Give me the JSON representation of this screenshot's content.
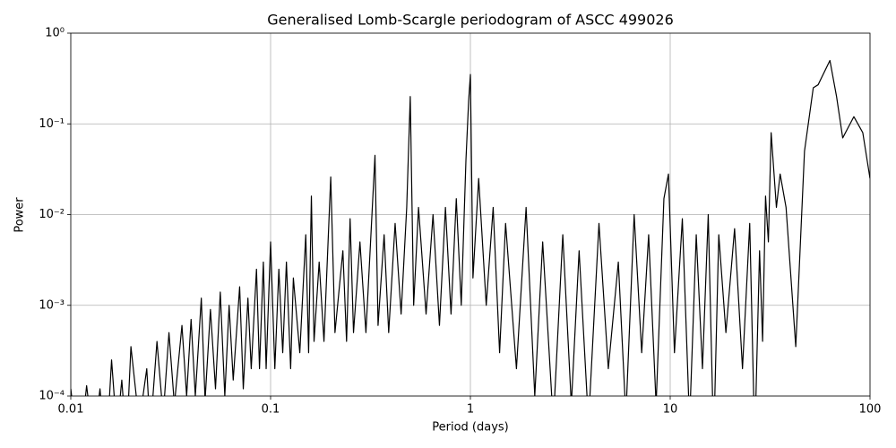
{
  "chart_data": {
    "type": "line",
    "title": "Generalised Lomb-Scargle periodogram of ASCC 499026",
    "x_label": "Period (days)",
    "y_label": "Power",
    "xscale": "log",
    "yscale": "log",
    "grid": true,
    "xlim": [
      0.01,
      100
    ],
    "ylim": [
      0.0001,
      1
    ],
    "xticks": [
      0.01,
      0.1,
      1,
      10,
      100
    ],
    "yticks": [
      {
        "value": 0.0001,
        "label": "10⁻⁴"
      },
      {
        "value": 0.001,
        "label": "10⁻³"
      },
      {
        "value": 0.01,
        "label": "10⁻²"
      },
      {
        "value": 0.1,
        "label": "10⁻¹"
      },
      {
        "value": 1,
        "label": "10⁰"
      }
    ],
    "series": [
      {
        "color": "#000000",
        "x": [
          0.01,
          0.011,
          0.012,
          0.013,
          0.014,
          0.015,
          0.016,
          0.017,
          0.018,
          0.019,
          0.02,
          0.022,
          0.024,
          0.025,
          0.027,
          0.029,
          0.031,
          0.033,
          0.036,
          0.038,
          0.04,
          0.042,
          0.045,
          0.047,
          0.05,
          0.053,
          0.056,
          0.059,
          0.062,
          0.065,
          0.07,
          0.073,
          0.077,
          0.08,
          0.085,
          0.088,
          0.092,
          0.095,
          0.1,
          0.105,
          0.11,
          0.115,
          0.12,
          0.126,
          0.13,
          0.14,
          0.15,
          0.155,
          0.16,
          0.165,
          0.175,
          0.185,
          0.2,
          0.21,
          0.23,
          0.24,
          0.25,
          0.26,
          0.28,
          0.3,
          0.333,
          0.345,
          0.37,
          0.39,
          0.42,
          0.45,
          0.48,
          0.5,
          0.52,
          0.55,
          0.6,
          0.65,
          0.7,
          0.75,
          0.8,
          0.85,
          0.9,
          0.95,
          0.98,
          1.0,
          1.03,
          1.1,
          1.2,
          1.3,
          1.4,
          1.5,
          1.7,
          1.9,
          2.1,
          2.3,
          2.6,
          2.9,
          3.2,
          3.5,
          3.9,
          4.4,
          4.9,
          5.5,
          6.0,
          6.6,
          7.2,
          7.8,
          8.5,
          9.3,
          9.8,
          10.5,
          11.5,
          12.5,
          13.5,
          14.5,
          15.5,
          16.5,
          17.5,
          19,
          21,
          23,
          25,
          26.5,
          28,
          29,
          30,
          31,
          32,
          34,
          35.5,
          38,
          42.5,
          47,
          52,
          55,
          63,
          68,
          73,
          83,
          92,
          100
        ],
        "values": [
          0.00012,
          2e-05,
          0.00013,
          3e-05,
          0.00012,
          2e-05,
          0.00025,
          4e-05,
          0.00015,
          3e-05,
          0.00035,
          5e-05,
          0.0002,
          4e-05,
          0.0004,
          6e-05,
          0.0005,
          8e-05,
          0.0006,
          0.0001,
          0.0007,
          0.0001,
          0.0012,
          9e-05,
          0.0009,
          0.00012,
          0.0014,
          0.0001,
          0.001,
          0.00015,
          0.0016,
          0.00012,
          0.0012,
          0.0002,
          0.0025,
          0.0002,
          0.003,
          0.0002,
          0.005,
          0.0002,
          0.0025,
          0.0003,
          0.003,
          0.0002,
          0.002,
          0.0003,
          0.006,
          0.0003,
          0.016,
          0.0004,
          0.003,
          0.0004,
          0.026,
          0.0005,
          0.004,
          0.0004,
          0.009,
          0.0005,
          0.005,
          0.0005,
          0.045,
          0.0006,
          0.006,
          0.0005,
          0.008,
          0.0008,
          0.012,
          0.2,
          0.001,
          0.012,
          0.0008,
          0.01,
          0.0006,
          0.012,
          0.0008,
          0.015,
          0.001,
          0.04,
          0.18,
          0.35,
          0.002,
          0.025,
          0.001,
          0.012,
          0.0003,
          0.008,
          0.0002,
          0.012,
          0.0001,
          0.005,
          5e-05,
          0.006,
          8e-05,
          0.004,
          5e-05,
          0.008,
          0.0002,
          0.003,
          6e-05,
          0.01,
          0.0003,
          0.006,
          8e-05,
          0.015,
          0.028,
          0.0003,
          0.009,
          5e-05,
          0.006,
          0.0002,
          0.01,
          3e-05,
          0.006,
          0.0005,
          0.007,
          0.0002,
          0.008,
          3e-05,
          0.004,
          0.0004,
          0.016,
          0.005,
          0.08,
          0.012,
          0.028,
          0.012,
          0.00035,
          0.05,
          0.25,
          0.27,
          0.5,
          0.2,
          0.07,
          0.12,
          0.08,
          0.025
        ]
      }
    ]
  }
}
